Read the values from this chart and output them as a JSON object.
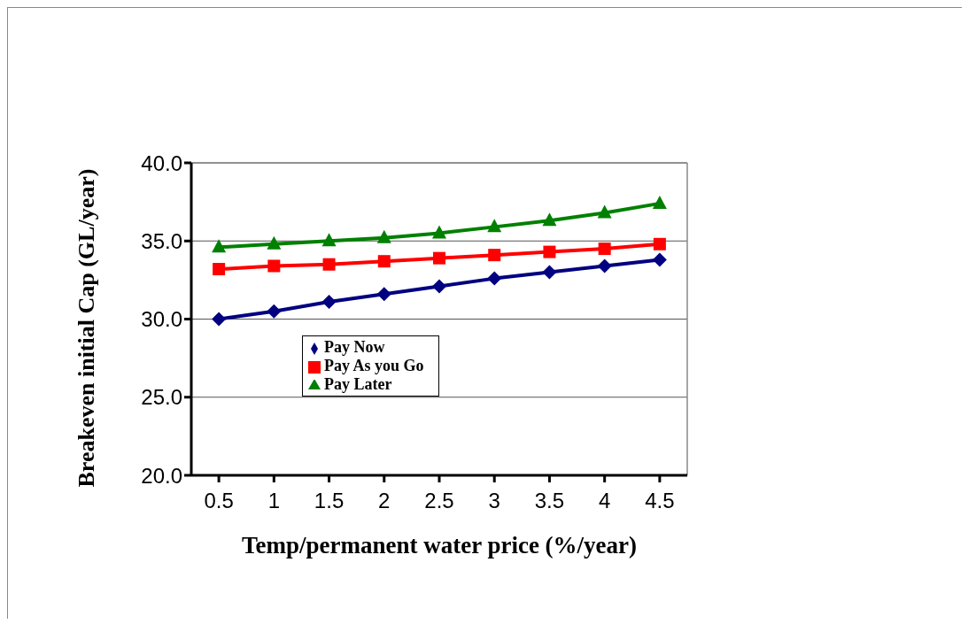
{
  "chart_data": {
    "type": "line",
    "xlabel": "Temp/permanent water price (%/year)",
    "ylabel": "Breakeven initial Cap (GL/year)",
    "categories": [
      "0.5",
      "1",
      "1.5",
      "2",
      "2.5",
      "3",
      "3.5",
      "4",
      "4.5"
    ],
    "series": [
      {
        "name": "Pay Now",
        "color": "#000080",
        "marker": "diamond",
        "values": [
          30.0,
          30.5,
          31.1,
          31.6,
          32.1,
          32.6,
          33.0,
          33.4,
          33.8
        ]
      },
      {
        "name": "Pay As you Go",
        "color": "#ff0000",
        "marker": "square",
        "values": [
          33.2,
          33.4,
          33.5,
          33.7,
          33.9,
          34.1,
          34.3,
          34.5,
          34.8
        ]
      },
      {
        "name": "Pay Later",
        "color": "#008000",
        "marker": "triangle",
        "values": [
          34.6,
          34.8,
          35.0,
          35.2,
          35.5,
          35.9,
          36.3,
          36.8,
          37.4
        ]
      }
    ],
    "ylim": [
      20,
      40
    ],
    "yticks": [
      {
        "value": 20,
        "label": "20.0"
      },
      {
        "value": 25,
        "label": "25.0"
      },
      {
        "value": 30,
        "label": "30.0"
      },
      {
        "value": 35,
        "label": "35.0"
      },
      {
        "value": 40,
        "label": "40.0"
      }
    ],
    "grid": "y",
    "legend": "bottom left",
    "line_style": "solid"
  }
}
